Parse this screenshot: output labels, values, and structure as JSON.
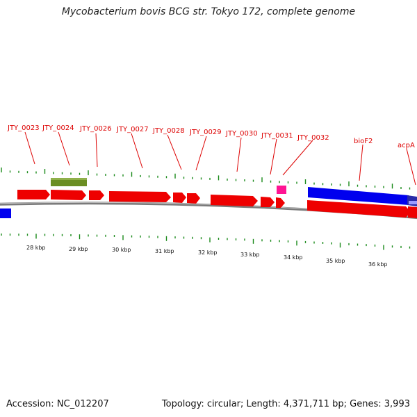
{
  "title": "Mycobacterium bovis BCG str. Tokyo 172, complete genome",
  "accession": "Accession: NC_012207",
  "stats": "Topology: circular; Length: 4,371,711 bp; Genes: 3,993",
  "colors": {
    "label": "#dd0000",
    "cds": "#ee0000",
    "tick": "#1a8a1a",
    "backbone": "#888888",
    "blue_feature": "#0000ee",
    "green_feature": "#6b8e23",
    "magenta_feature": "#ff1493"
  },
  "gene_labels": [
    "JTY_0023",
    "JTY_0024",
    "JTY_0026",
    "JTY_0027",
    "JTY_0028",
    "JTY_0029",
    "JTY_0030",
    "JTY_0031",
    "JTY_0032",
    "bioF2",
    "acpA"
  ],
  "scale_labels": [
    "28 kbp",
    "29 kbp",
    "30 kbp",
    "31 kbp",
    "32 kbp",
    "33 kbp",
    "34 kbp",
    "35 kbp",
    "36 kbp"
  ]
}
